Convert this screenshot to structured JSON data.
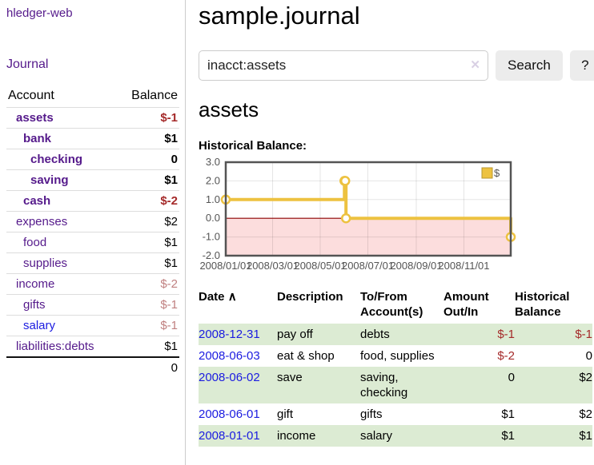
{
  "colors": {
    "link_purple": "#551a8b",
    "link_blue": "#1b1be0",
    "negative_strong": "#a52a2a",
    "negative_soft": "#c08080",
    "row_green": "#dcebd3",
    "chart_gold": "#edc240",
    "chart_negative_fill": "#fcdddd",
    "chart_zero_line": "#8b0000",
    "chart_border": "#545454"
  },
  "sidebar": {
    "brand": "hledger-web",
    "nav_journal": "Journal",
    "accounts": {
      "col_account": "Account",
      "col_balance": "Balance",
      "rows": [
        {
          "name": "assets",
          "balance": "$-1",
          "depth": 1,
          "emphasis": true
        },
        {
          "name": "bank",
          "balance": "$1",
          "depth": 2,
          "emphasis": true
        },
        {
          "name": "checking",
          "balance": "0",
          "depth": 3,
          "emphasis": true
        },
        {
          "name": "saving",
          "balance": "$1",
          "depth": 3,
          "emphasis": true
        },
        {
          "name": "cash",
          "balance": "$-2",
          "depth": 2,
          "emphasis": true
        },
        {
          "name": "expenses",
          "balance": "$2",
          "depth": 1,
          "emphasis": false
        },
        {
          "name": "food",
          "balance": "$1",
          "depth": 2,
          "emphasis": false
        },
        {
          "name": "supplies",
          "balance": "$1",
          "depth": 2,
          "emphasis": false
        },
        {
          "name": "income",
          "balance": "$-2",
          "depth": 1,
          "emphasis": false
        },
        {
          "name": "gifts",
          "balance": "$-1",
          "depth": 2,
          "emphasis": false
        },
        {
          "name": "salary",
          "balance": "$-1",
          "depth": 2,
          "emphasis": false,
          "link": "blue"
        },
        {
          "name": "liabilities:debts",
          "balance": "$1",
          "depth": 1,
          "emphasis": false
        }
      ],
      "total": "0"
    }
  },
  "main": {
    "title": "sample.journal",
    "search": {
      "value": "inacct:assets",
      "clear_icon": "✕",
      "button_label": "Search",
      "help_label": "?"
    },
    "heading": "assets",
    "chart_label": "Historical Balance:"
  },
  "chart_data": {
    "type": "line",
    "title": "Historical Balance",
    "steps": true,
    "series": [
      {
        "name": "$",
        "points": [
          [
            "2008-01-01",
            1
          ],
          [
            "2008-06-01",
            2
          ],
          [
            "2008-06-02",
            2
          ],
          [
            "2008-06-03",
            0
          ],
          [
            "2008-12-31",
            -1
          ]
        ]
      }
    ],
    "xlim": [
      "2008-01-01",
      "2008-12-31"
    ],
    "ylim": [
      -2,
      3
    ],
    "y_ticks": [
      3.0,
      2.0,
      1.0,
      0.0,
      -1.0,
      -2.0
    ],
    "x_ticks": [
      "2008/01/01",
      "2008/03/01",
      "2008/05/01",
      "2008/07/01",
      "2008/09/01",
      "2008/11/01"
    ],
    "legend": {
      "label": "$",
      "position": "top-right"
    },
    "grid": true,
    "negative_region_shaded": true
  },
  "register": {
    "columns": [
      "Date",
      "Description",
      "To/From Account(s)",
      "Amount Out/In",
      "Historical Balance"
    ],
    "sort_arrow": "∧",
    "rows": [
      {
        "date": "2008-12-31",
        "description": "pay off",
        "accounts": "debts",
        "amount": "$-1",
        "balance": "$-1"
      },
      {
        "date": "2008-06-03",
        "description": "eat & shop",
        "accounts": "food, supplies",
        "amount": "$-2",
        "balance": "0"
      },
      {
        "date": "2008-06-02",
        "description": "save",
        "accounts": "saving, checking",
        "amount": "0",
        "balance": "$2"
      },
      {
        "date": "2008-06-01",
        "description": "gift",
        "accounts": "gifts",
        "amount": "$1",
        "balance": "$2"
      },
      {
        "date": "2008-01-01",
        "description": "income",
        "accounts": "salary",
        "amount": "$1",
        "balance": "$1"
      }
    ]
  }
}
